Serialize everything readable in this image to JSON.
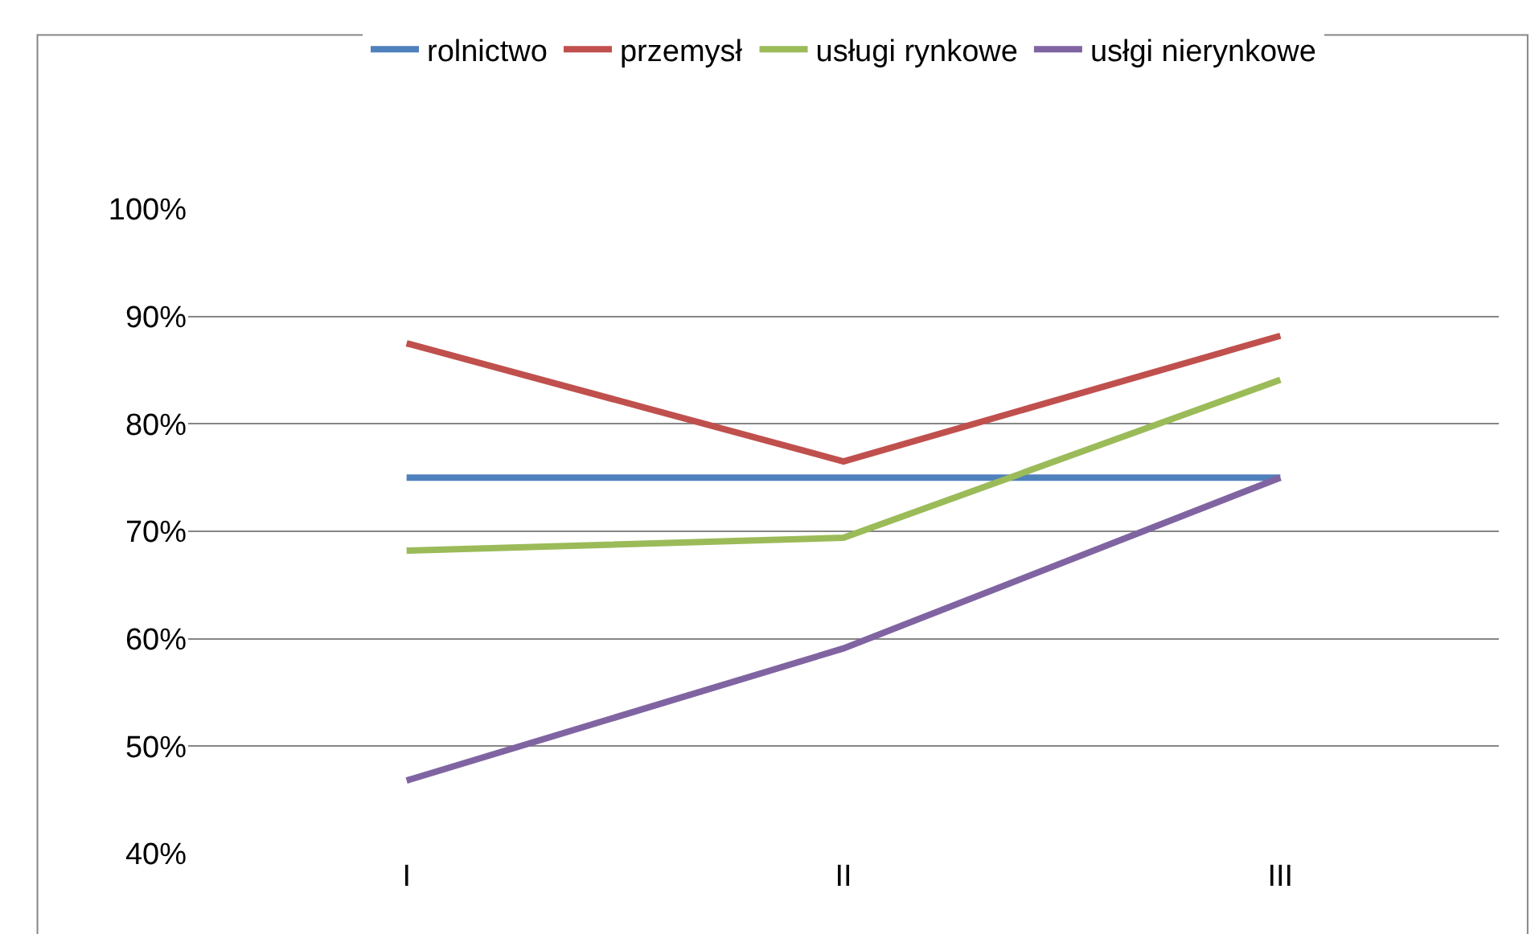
{
  "chart_data": {
    "type": "line",
    "categories": [
      "I",
      "II",
      "III"
    ],
    "series": [
      {
        "name": "rolnictwo",
        "color": "#4f81bd",
        "values": [
          75,
          75,
          75
        ]
      },
      {
        "name": "przemysł",
        "color": "#c0504d",
        "values": [
          87.5,
          76.5,
          88.2
        ]
      },
      {
        "name": "usługi rynkowe",
        "color": "#9bbb59",
        "values": [
          68.2,
          69.4,
          84.1
        ]
      },
      {
        "name": "usłgi nierynkowe",
        "color": "#8064a2",
        "values": [
          46.8,
          59.1,
          75
        ]
      }
    ],
    "ylim": [
      40,
      100
    ],
    "yticks": [
      {
        "value": 40,
        "label": "40%"
      },
      {
        "value": 50,
        "label": "50%"
      },
      {
        "value": 60,
        "label": "60%"
      },
      {
        "value": 70,
        "label": "70%"
      },
      {
        "value": 80,
        "label": "80%"
      },
      {
        "value": 90,
        "label": "90%"
      },
      {
        "value": 100,
        "label": "100%"
      }
    ],
    "grid": "y",
    "legend": "top",
    "marker": "none",
    "line_style": "solid"
  }
}
